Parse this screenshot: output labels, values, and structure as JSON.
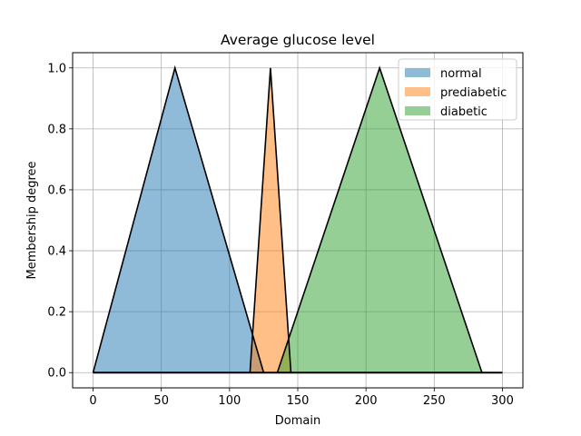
{
  "chart_data": {
    "type": "area",
    "title": "Average glucose level",
    "xlabel": "Domain",
    "ylabel": "Membership degree",
    "xlim": [
      -15,
      315
    ],
    "ylim": [
      -0.05,
      1.05
    ],
    "xticks": [
      0,
      50,
      100,
      150,
      200,
      250,
      300
    ],
    "yticks": [
      0.0,
      0.2,
      0.4,
      0.6,
      0.8,
      1.0
    ],
    "xtick_labels": [
      "0",
      "50",
      "100",
      "150",
      "200",
      "250",
      "300"
    ],
    "ytick_labels": [
      "0.0",
      "0.2",
      "0.4",
      "0.6",
      "0.8",
      "1.0"
    ],
    "grid": true,
    "legend_position": "top-right",
    "series": [
      {
        "name": "normal",
        "color": "#1f77b4",
        "points": [
          [
            0,
            0
          ],
          [
            60,
            1
          ],
          [
            125,
            0
          ]
        ]
      },
      {
        "name": "prediabetic",
        "color": "#ff7f0e",
        "points": [
          [
            115,
            0
          ],
          [
            130,
            1
          ],
          [
            145,
            0
          ]
        ]
      },
      {
        "name": "diabetic",
        "color": "#2ca02c",
        "points": [
          [
            135,
            0
          ],
          [
            210,
            1
          ],
          [
            285,
            0
          ]
        ]
      }
    ],
    "domain_line": [
      0,
      300
    ]
  }
}
